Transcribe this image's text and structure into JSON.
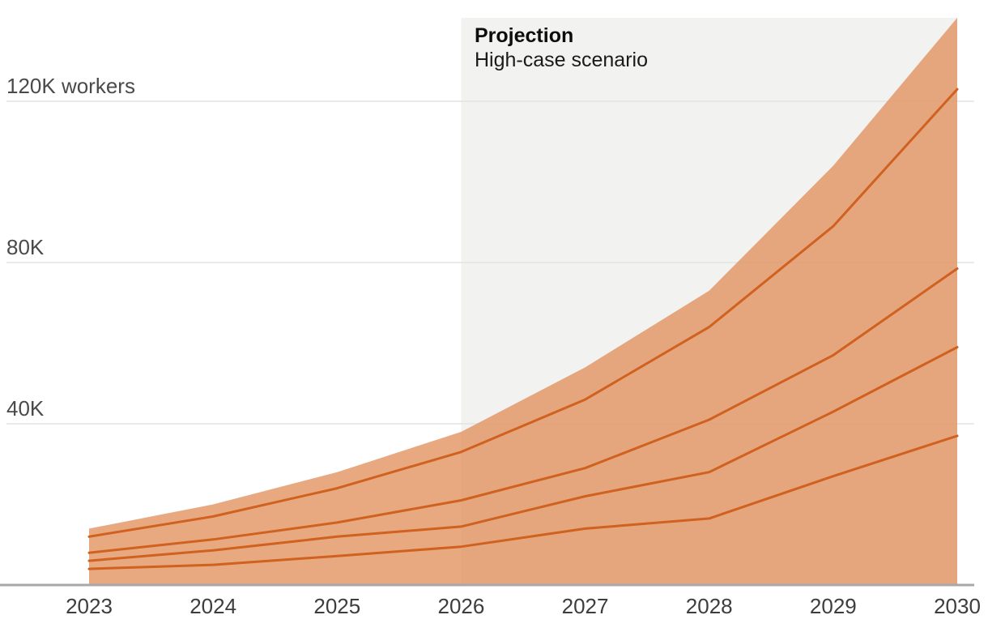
{
  "annotation": {
    "title": "Projection",
    "subtitle": "High-case scenario"
  },
  "colors": {
    "band_fill": "#e18f5c",
    "band_opacity": "0.78",
    "line": "#d0611f",
    "grid_line": "#e3e3e3",
    "axis_line": "#a8a8a8",
    "projection_bg": "#f2f2f1",
    "tick_text": "#3d3d3d",
    "y_tick_text": "#4a4a4a"
  },
  "chart_data": {
    "type": "area",
    "title": "Projection",
    "subtitle": "High-case scenario",
    "unit": "thousand workers",
    "categories": [
      "2023",
      "2024",
      "2025",
      "2026",
      "2027",
      "2028",
      "2029",
      "2030"
    ],
    "band_top": {
      "name": "high-case-envelope-top",
      "values": [
        14,
        20,
        28,
        38,
        54,
        73,
        104,
        140.7
      ]
    },
    "series": [
      {
        "name": "scenario-line-1",
        "values": [
          12,
          17,
          24,
          33,
          46,
          64,
          89,
          123
        ]
      },
      {
        "name": "scenario-line-2",
        "values": [
          8,
          11.3,
          15.5,
          21,
          29,
          41,
          57,
          78.5
        ]
      },
      {
        "name": "scenario-line-3",
        "values": [
          6,
          8.6,
          12,
          14.5,
          22,
          28,
          43,
          59
        ]
      },
      {
        "name": "scenario-line-4",
        "values": [
          4,
          5,
          7.2,
          9.5,
          14,
          16.5,
          27,
          37
        ]
      }
    ],
    "baseline": 0,
    "ylim": [
      0,
      140.7
    ],
    "y_ticks": [
      {
        "value": 40,
        "label": "40K"
      },
      {
        "value": 80,
        "label": "80K"
      },
      {
        "value": 120,
        "label": "120K workers"
      }
    ],
    "projection_start": "2026",
    "projection_end": "2030",
    "grid": true,
    "legend_position": "none"
  }
}
